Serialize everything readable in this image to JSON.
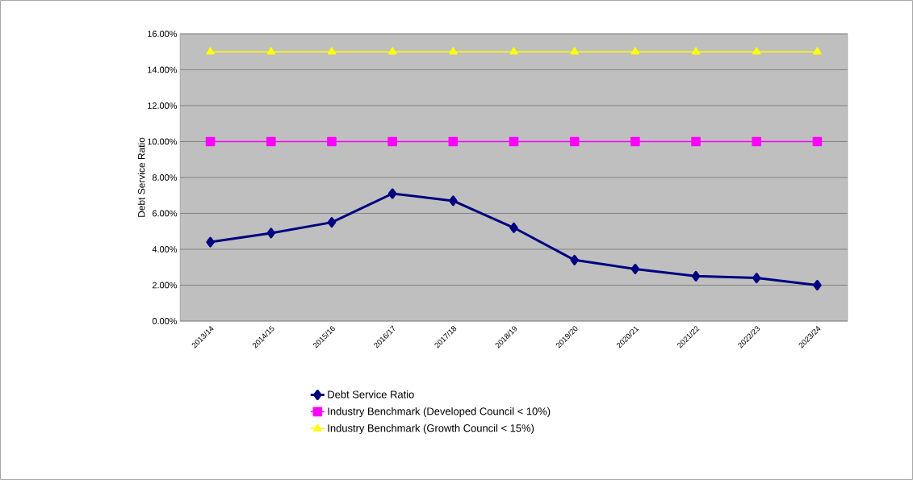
{
  "chart_data": {
    "type": "line",
    "ylabel": "Debt Service Ratio",
    "categories": [
      "2013/14",
      "2014/15",
      "2015/16",
      "2016/17",
      "2017/18",
      "2018/19",
      "2019/20",
      "2020/21",
      "2021/22",
      "2022/23",
      "2023/24"
    ],
    "series": [
      {
        "name": "Debt Service Ratio",
        "color": "#000080",
        "marker": "diamond",
        "values": [
          4.4,
          4.9,
          5.5,
          7.1,
          6.7,
          5.2,
          3.4,
          2.9,
          2.5,
          2.4,
          2.0
        ]
      },
      {
        "name": "Industry Benchmark (Developed Council < 10%)",
        "color": "#ff00ff",
        "marker": "square",
        "values": [
          10,
          10,
          10,
          10,
          10,
          10,
          10,
          10,
          10,
          10,
          10
        ]
      },
      {
        "name": "Industry Benchmark (Growth Council <  15%)",
        "color": "#ffff00",
        "marker": "triangle",
        "values": [
          15,
          15,
          15,
          15,
          15,
          15,
          15,
          15,
          15,
          15,
          15
        ]
      }
    ],
    "ylim": [
      0,
      16
    ],
    "yticks": [
      {
        "value": 0,
        "label": "0.00%"
      },
      {
        "value": 2,
        "label": "2.00%"
      },
      {
        "value": 4,
        "label": "4.00%"
      },
      {
        "value": 6,
        "label": "6.00%"
      },
      {
        "value": 8,
        "label": "8.00%"
      },
      {
        "value": 10,
        "label": "10.00%"
      },
      {
        "value": 12,
        "label": "12.00%"
      },
      {
        "value": 14,
        "label": "14.00%"
      },
      {
        "value": 16,
        "label": "16.00%"
      }
    ],
    "grid": "y",
    "legend": "bottom",
    "line_style": "solid"
  }
}
